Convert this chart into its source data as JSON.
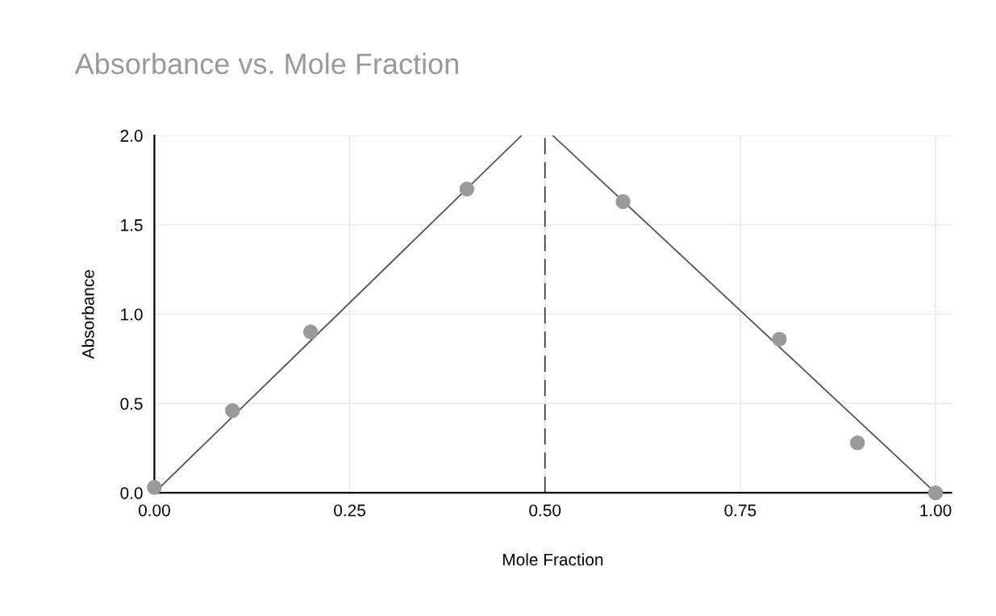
{
  "chart_data": {
    "type": "scatter",
    "title": "Absorbance vs. Mole Fraction",
    "xlabel": "Mole Fraction",
    "ylabel": "Absorbance",
    "series": [
      {
        "marker": "circle",
        "color": "#9a9a9a",
        "x": [
          0.0,
          0.1,
          0.2,
          0.4,
          0.6,
          0.8,
          0.9,
          1.0
        ],
        "values": [
          0.03,
          0.46,
          0.9,
          1.7,
          1.63,
          0.86,
          0.28,
          0.0
        ]
      },
      {
        "type": "line",
        "color": "#555555",
        "x": [
          0.0,
          0.47
        ],
        "values": [
          0.0,
          2.0
        ]
      },
      {
        "type": "line",
        "color": "#555555",
        "x": [
          0.51,
          1.0
        ],
        "values": [
          2.0,
          0.0
        ]
      }
    ],
    "xlim": [
      0,
      1.02
    ],
    "xticks": [
      {
        "value": 0,
        "label": "0.00"
      },
      0.25,
      {
        "value": 0.5,
        "label": "0.50"
      },
      0.75,
      {
        "value": 1,
        "label": "1.00"
      }
    ],
    "ylim": [
      0,
      2.0
    ],
    "yticks": [
      {
        "value": 0,
        "label": "0.0"
      },
      0.5,
      {
        "value": 1,
        "label": "1.0"
      },
      1.5,
      {
        "value": 2,
        "label": "2.0"
      }
    ],
    "ref_lines": [
      {
        "axis": "x",
        "value": 0.5,
        "color": "#333333",
        "line_style": "dashed"
      }
    ],
    "grid": true
  }
}
